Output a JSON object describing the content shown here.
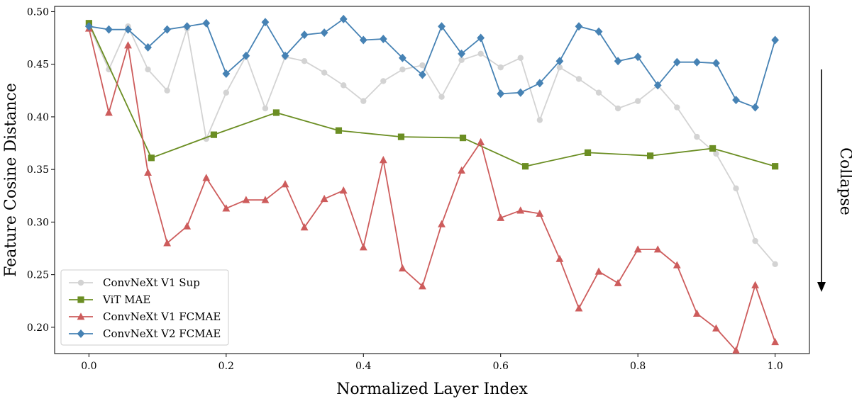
{
  "chart_data": {
    "type": "line",
    "xlabel": "Normalized Layer Index",
    "ylabel": "Feature Cosine Distance",
    "xlim": [
      -0.05,
      1.05
    ],
    "ylim": [
      0.175,
      0.505
    ],
    "x_ticks": [
      "0.0",
      "0.2",
      "0.4",
      "0.6",
      "0.8",
      "1.0"
    ],
    "y_ticks": [
      "0.20",
      "0.25",
      "0.30",
      "0.35",
      "0.40",
      "0.45",
      "0.50"
    ],
    "grid": false,
    "legend_position": "bottom-left",
    "annotation": {
      "text": "Collapse",
      "arrow_direction": "down"
    },
    "series": [
      {
        "name": "ConvNeXt V1 Sup",
        "color": "#d3d3d3",
        "marker": "circle",
        "points": [
          [
            0.0,
            0.487
          ],
          [
            0.029,
            0.445
          ],
          [
            0.057,
            0.486
          ],
          [
            0.086,
            0.445
          ],
          [
            0.114,
            0.425
          ],
          [
            0.143,
            0.484
          ],
          [
            0.171,
            0.379
          ],
          [
            0.2,
            0.423
          ],
          [
            0.229,
            0.458
          ],
          [
            0.257,
            0.408
          ],
          [
            0.286,
            0.457
          ],
          [
            0.314,
            0.453
          ],
          [
            0.343,
            0.442
          ],
          [
            0.371,
            0.43
          ],
          [
            0.4,
            0.415
          ],
          [
            0.429,
            0.434
          ],
          [
            0.457,
            0.445
          ],
          [
            0.486,
            0.449
          ],
          [
            0.514,
            0.419
          ],
          [
            0.543,
            0.454
          ],
          [
            0.571,
            0.46
          ],
          [
            0.6,
            0.447
          ],
          [
            0.629,
            0.456
          ],
          [
            0.657,
            0.397
          ],
          [
            0.686,
            0.447
          ],
          [
            0.714,
            0.436
          ],
          [
            0.743,
            0.423
          ],
          [
            0.771,
            0.408
          ],
          [
            0.8,
            0.415
          ],
          [
            0.829,
            0.43
          ],
          [
            0.857,
            0.409
          ],
          [
            0.886,
            0.381
          ],
          [
            0.914,
            0.365
          ],
          [
            0.943,
            0.332
          ],
          [
            0.971,
            0.282
          ],
          [
            1.0,
            0.26
          ]
        ]
      },
      {
        "name": "ViT MAE",
        "color": "#6b8e23",
        "marker": "square",
        "points": [
          [
            0.0,
            0.489
          ],
          [
            0.091,
            0.361
          ],
          [
            0.182,
            0.383
          ],
          [
            0.273,
            0.404
          ],
          [
            0.364,
            0.387
          ],
          [
            0.455,
            0.381
          ],
          [
            0.545,
            0.38
          ],
          [
            0.636,
            0.353
          ],
          [
            0.727,
            0.366
          ],
          [
            0.818,
            0.363
          ],
          [
            0.909,
            0.37
          ],
          [
            1.0,
            0.353
          ]
        ]
      },
      {
        "name": "ConvNeXt V1 FCMAE",
        "color": "#cd5c5c",
        "marker": "triangle",
        "points": [
          [
            0.0,
            0.484
          ],
          [
            0.029,
            0.404
          ],
          [
            0.057,
            0.468
          ],
          [
            0.086,
            0.347
          ],
          [
            0.114,
            0.28
          ],
          [
            0.143,
            0.296
          ],
          [
            0.171,
            0.342
          ],
          [
            0.2,
            0.313
          ],
          [
            0.229,
            0.321
          ],
          [
            0.257,
            0.321
          ],
          [
            0.286,
            0.336
          ],
          [
            0.314,
            0.295
          ],
          [
            0.343,
            0.322
          ],
          [
            0.371,
            0.33
          ],
          [
            0.4,
            0.276
          ],
          [
            0.429,
            0.359
          ],
          [
            0.457,
            0.256
          ],
          [
            0.486,
            0.239
          ],
          [
            0.514,
            0.298
          ],
          [
            0.543,
            0.349
          ],
          [
            0.571,
            0.376
          ],
          [
            0.6,
            0.304
          ],
          [
            0.629,
            0.311
          ],
          [
            0.657,
            0.308
          ],
          [
            0.686,
            0.265
          ],
          [
            0.714,
            0.218
          ],
          [
            0.743,
            0.253
          ],
          [
            0.771,
            0.242
          ],
          [
            0.8,
            0.274
          ],
          [
            0.829,
            0.274
          ],
          [
            0.857,
            0.259
          ],
          [
            0.886,
            0.213
          ],
          [
            0.914,
            0.199
          ],
          [
            0.943,
            0.178
          ],
          [
            0.971,
            0.24
          ],
          [
            1.0,
            0.186
          ]
        ]
      },
      {
        "name": "ConvNeXt V2 FCMAE",
        "color": "#4682b4",
        "marker": "diamond",
        "points": [
          [
            0.0,
            0.486
          ],
          [
            0.029,
            0.483
          ],
          [
            0.057,
            0.483
          ],
          [
            0.086,
            0.466
          ],
          [
            0.114,
            0.483
          ],
          [
            0.143,
            0.486
          ],
          [
            0.171,
            0.489
          ],
          [
            0.2,
            0.441
          ],
          [
            0.229,
            0.458
          ],
          [
            0.257,
            0.49
          ],
          [
            0.286,
            0.458
          ],
          [
            0.314,
            0.478
          ],
          [
            0.343,
            0.48
          ],
          [
            0.371,
            0.493
          ],
          [
            0.4,
            0.473
          ],
          [
            0.429,
            0.474
          ],
          [
            0.457,
            0.456
          ],
          [
            0.486,
            0.44
          ],
          [
            0.514,
            0.486
          ],
          [
            0.543,
            0.46
          ],
          [
            0.571,
            0.475
          ],
          [
            0.6,
            0.422
          ],
          [
            0.629,
            0.423
          ],
          [
            0.657,
            0.432
          ],
          [
            0.686,
            0.453
          ],
          [
            0.714,
            0.486
          ],
          [
            0.743,
            0.481
          ],
          [
            0.771,
            0.453
          ],
          [
            0.8,
            0.457
          ],
          [
            0.829,
            0.43
          ],
          [
            0.857,
            0.452
          ],
          [
            0.886,
            0.452
          ],
          [
            0.914,
            0.451
          ],
          [
            0.943,
            0.416
          ],
          [
            0.971,
            0.409
          ],
          [
            1.0,
            0.473
          ]
        ]
      }
    ]
  }
}
